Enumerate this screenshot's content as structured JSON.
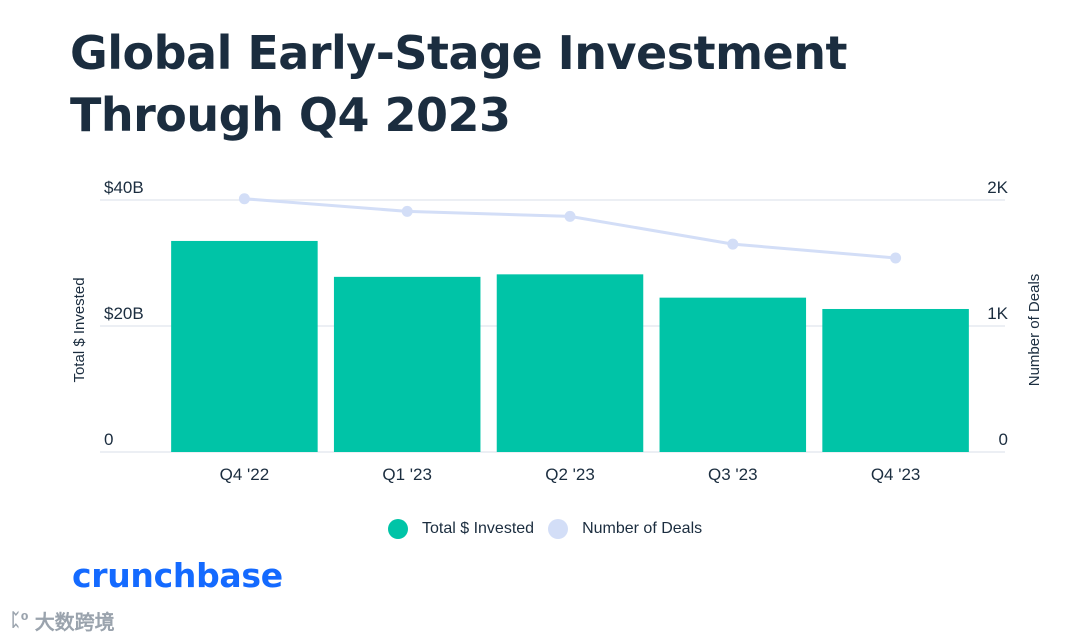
{
  "title": "Global Early-Stage Investment Through Q4 2023",
  "colors": {
    "bars": "#00c4a7",
    "line": "#d3def7",
    "grid": "#e6eaf0",
    "text": "#1b2d3f",
    "brand": "#146aff"
  },
  "chart_data": {
    "type": "bar",
    "title": "Global Early-Stage Investment Through Q4 2023",
    "categories": [
      "Q4 '22",
      "Q1 '23",
      "Q2 '23",
      "Q3 '23",
      "Q4 '23"
    ],
    "series": [
      {
        "name": "Total $ Invested",
        "type": "bar",
        "axis": "left",
        "values": [
          33.5,
          27.8,
          28.2,
          24.5,
          22.7
        ]
      },
      {
        "name": "Number of Deals",
        "type": "line",
        "axis": "right",
        "values": [
          2010,
          1910,
          1870,
          1650,
          1540
        ]
      }
    ],
    "ylabel": "Total $ Invested",
    "ylabel_right": "Number of Deals",
    "ylim": [
      0,
      40
    ],
    "ylim_right": [
      0,
      2000
    ],
    "yticks": [
      "0",
      "$20B",
      "$40B"
    ],
    "yticks_right": [
      "0",
      "1K",
      "2K"
    ],
    "grid": true,
    "legend": "bottom"
  },
  "legend": {
    "bar_label": "Total $ Invested",
    "line_label": "Number of Deals"
  },
  "brand": "crunchbase",
  "watermark": "大数跨境"
}
